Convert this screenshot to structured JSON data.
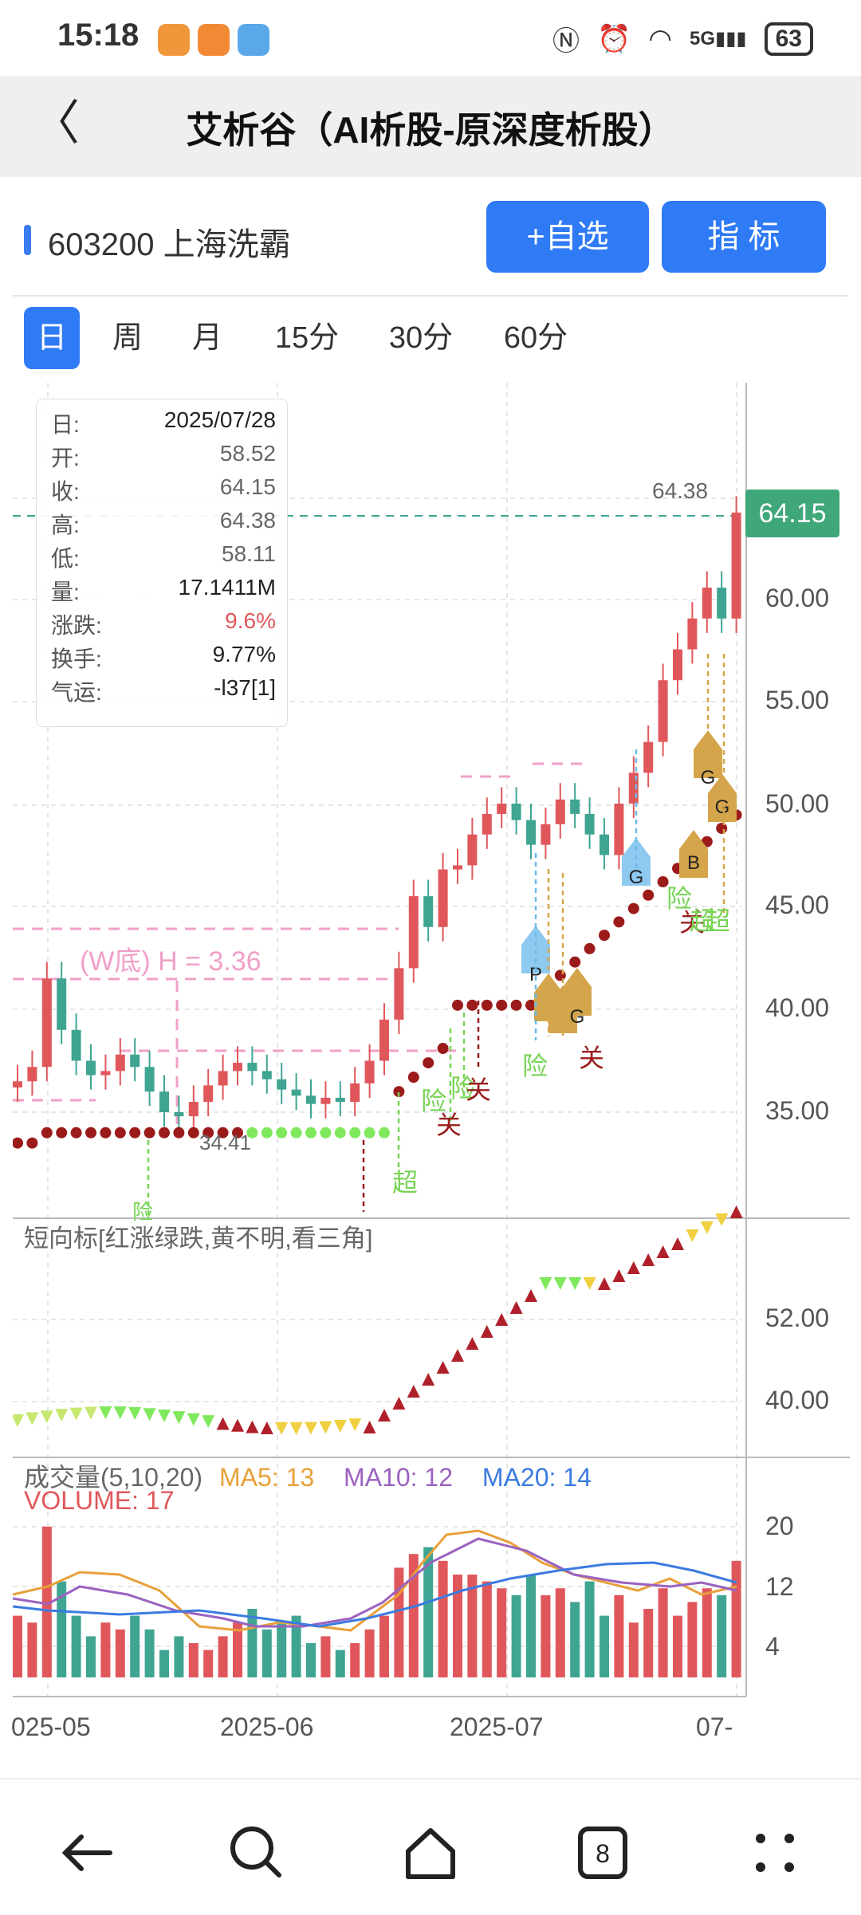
{
  "status": {
    "time": "15:18",
    "battery": "63",
    "network": "5G"
  },
  "header": {
    "title": "艾析谷（AI析股-原深度析股）"
  },
  "stock": {
    "code_name": "603200 上海洗霸",
    "add_watch_label": "+自选",
    "indicator_label": "指  标"
  },
  "tabs": [
    {
      "label": "日",
      "active": true
    },
    {
      "label": "周"
    },
    {
      "label": "月"
    },
    {
      "label": "15分"
    },
    {
      "label": "30分"
    },
    {
      "label": "60分"
    }
  ],
  "info": {
    "rows": [
      {
        "k": "日:",
        "v": "2025/07/28"
      },
      {
        "k": "开:",
        "v": "58.52"
      },
      {
        "k": "收:",
        "v": "64.15"
      },
      {
        "k": "高:",
        "v": "64.38"
      },
      {
        "k": "低:",
        "v": "58.11"
      },
      {
        "k": "量:",
        "v": "17.1411M"
      },
      {
        "k": "涨跌:",
        "v": "9.6%"
      },
      {
        "k": "换手:",
        "v": "9.77%"
      },
      {
        "k": "气运:",
        "v": "-l37[1]"
      }
    ]
  },
  "price_chart": {
    "current_price": "64.15",
    "high_label": "64.38",
    "y_labels": [
      "60.00",
      "55.00",
      "50.00",
      "45.00",
      "40.00",
      "35.00"
    ],
    "w_bottom_label": "(W底) H = 3.36",
    "low_label": "34.41",
    "signal_labels": [
      "超",
      "险",
      "关",
      "险",
      "关",
      "险",
      "关",
      "险",
      "关",
      "超",
      "险",
      "超"
    ],
    "marker_labels": [
      "P",
      "G",
      "G",
      "B",
      "G",
      "G"
    ]
  },
  "indicator": {
    "title": "短向标[红涨绿跌,黄不明,看三角]",
    "y_labels": [
      "52.00",
      "40.00"
    ]
  },
  "volume": {
    "title": "成交量(5,10,20)",
    "ma5": "MA5: 13",
    "ma10": "MA10: 12",
    "ma20": "MA20: 14",
    "volume_label": "VOLUME: 17",
    "y_labels": [
      "20",
      "12",
      "4"
    ]
  },
  "x_axis": [
    "025-05",
    "2025-06",
    "2025-07",
    "07-"
  ],
  "colors": {
    "up": "#e0575b",
    "down": "#3fa592",
    "accent": "#2f7af5",
    "ma5": "#e8a03a",
    "ma10": "#9b62c0",
    "ma20": "#3b7be0"
  }
}
